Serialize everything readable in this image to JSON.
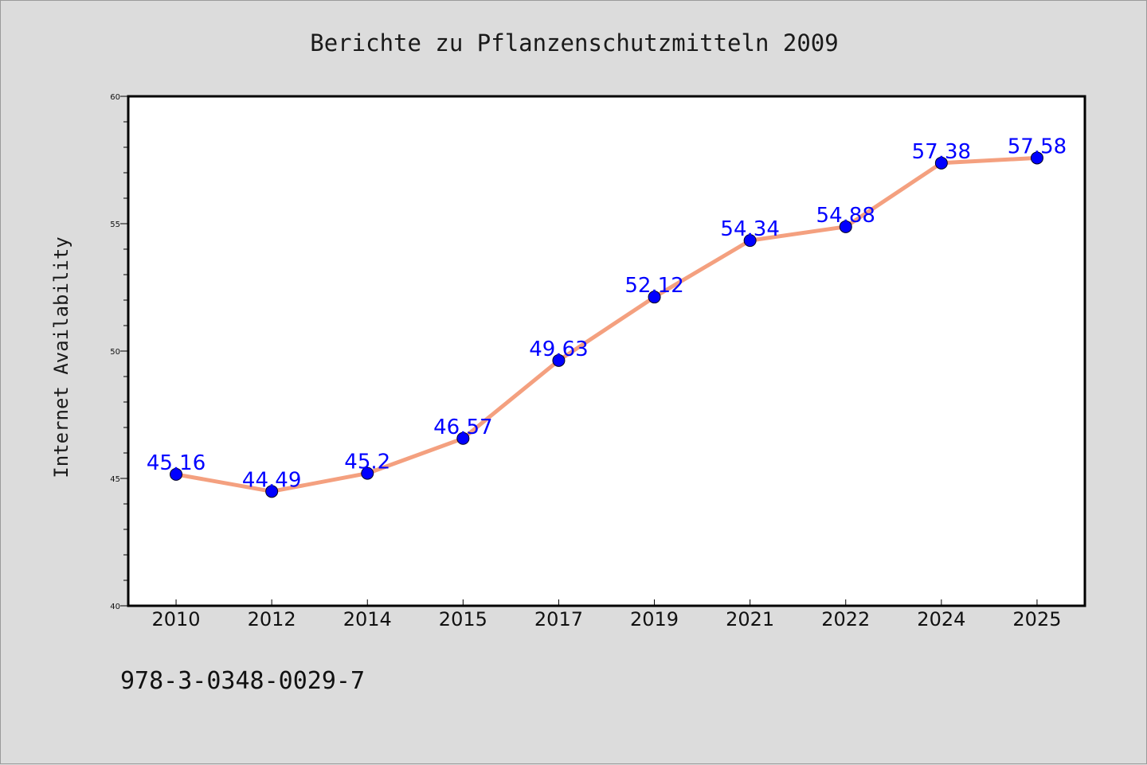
{
  "footer_code": "978-3-0348-0029-7",
  "colors": {
    "background": "#dcdcdc",
    "plot_background": "#ffffff",
    "line": "#f4a07f",
    "marker": "#0000ff",
    "data_label": "#0000ff"
  },
  "chart_data": {
    "type": "line",
    "title": "Berichte zu Pflanzenschutzmitteln 2009",
    "xlabel": "",
    "ylabel": "Internet Availability",
    "ylim": [
      40,
      60
    ],
    "yticks": [
      40,
      45,
      50,
      55,
      60
    ],
    "grid": false,
    "categories": [
      "2010",
      "2012",
      "2014",
      "2015",
      "2017",
      "2019",
      "2021",
      "2022",
      "2024",
      "2025"
    ],
    "series": [
      {
        "values": [
          45.16,
          44.49,
          45.2,
          46.57,
          49.63,
          52.12,
          54.34,
          54.88,
          57.38,
          57.58
        ],
        "labels": [
          "45.16",
          "44.49",
          "45.2",
          "46.57",
          "49.63",
          "52.12",
          "54.34",
          "54.88",
          "57.38",
          "57.58"
        ]
      }
    ]
  }
}
